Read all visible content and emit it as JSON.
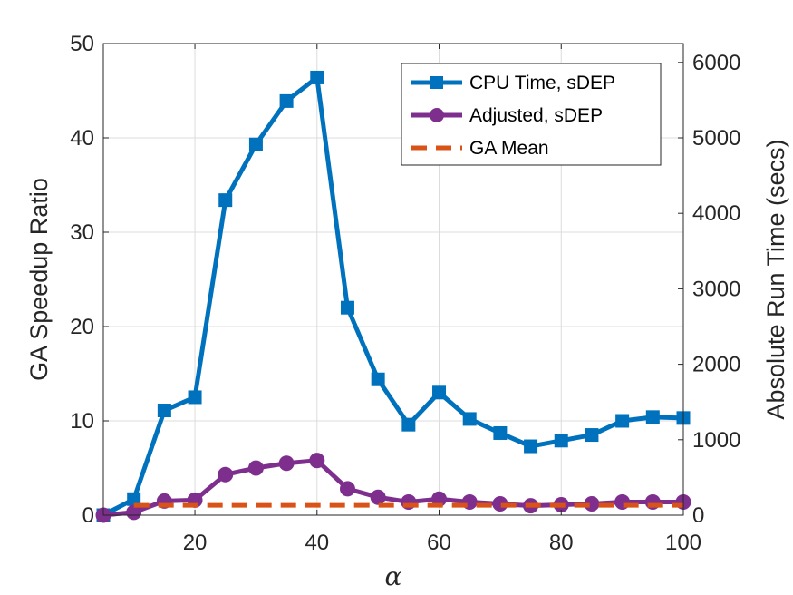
{
  "chart_data": {
    "type": "line",
    "xlabel": "α",
    "ylabel": "GA Speedup Ratio",
    "y2label": "Absolute Run Time (secs)",
    "xlim": [
      5,
      100
    ],
    "ylim": [
      0,
      50
    ],
    "y2lim": [
      0,
      6250
    ],
    "xticks": [
      20,
      40,
      60,
      80,
      100
    ],
    "yticks": [
      0,
      10,
      20,
      30,
      40,
      50
    ],
    "y2ticks": [
      0,
      1000,
      2000,
      3000,
      4000,
      5000,
      6000
    ],
    "grid": true,
    "legend_position": "top-right",
    "x": [
      5,
      10,
      15,
      20,
      25,
      30,
      35,
      40,
      45,
      50,
      55,
      60,
      65,
      70,
      75,
      80,
      85,
      90,
      95,
      100
    ],
    "series": [
      {
        "name": "CPU Time, sDEP",
        "axis": "right",
        "marker": "square",
        "line": "solid",
        "color": "#0072BD",
        "values": [
          0,
          213,
          1388,
          1563,
          4175,
          4913,
          5488,
          5800,
          2750,
          1800,
          1200,
          1625,
          1275,
          1088,
          913,
          988,
          1063,
          1250,
          1300,
          1288
        ]
      },
      {
        "name": "Adjusted, sDEP",
        "axis": "right",
        "marker": "circle",
        "line": "solid",
        "color": "#7E2F8E",
        "values": [
          0,
          38,
          188,
          200,
          538,
          625,
          688,
          725,
          350,
          238,
          175,
          213,
          175,
          150,
          125,
          138,
          150,
          175,
          175,
          175
        ]
      },
      {
        "name": "GA Mean",
        "axis": "right",
        "marker": "none",
        "line": "dashed",
        "color": "#D95319",
        "values": [
          130,
          130,
          130,
          130,
          130,
          130,
          130,
          130,
          130,
          130,
          130,
          130,
          130,
          130,
          130,
          130,
          130,
          130,
          130,
          130
        ]
      }
    ]
  }
}
